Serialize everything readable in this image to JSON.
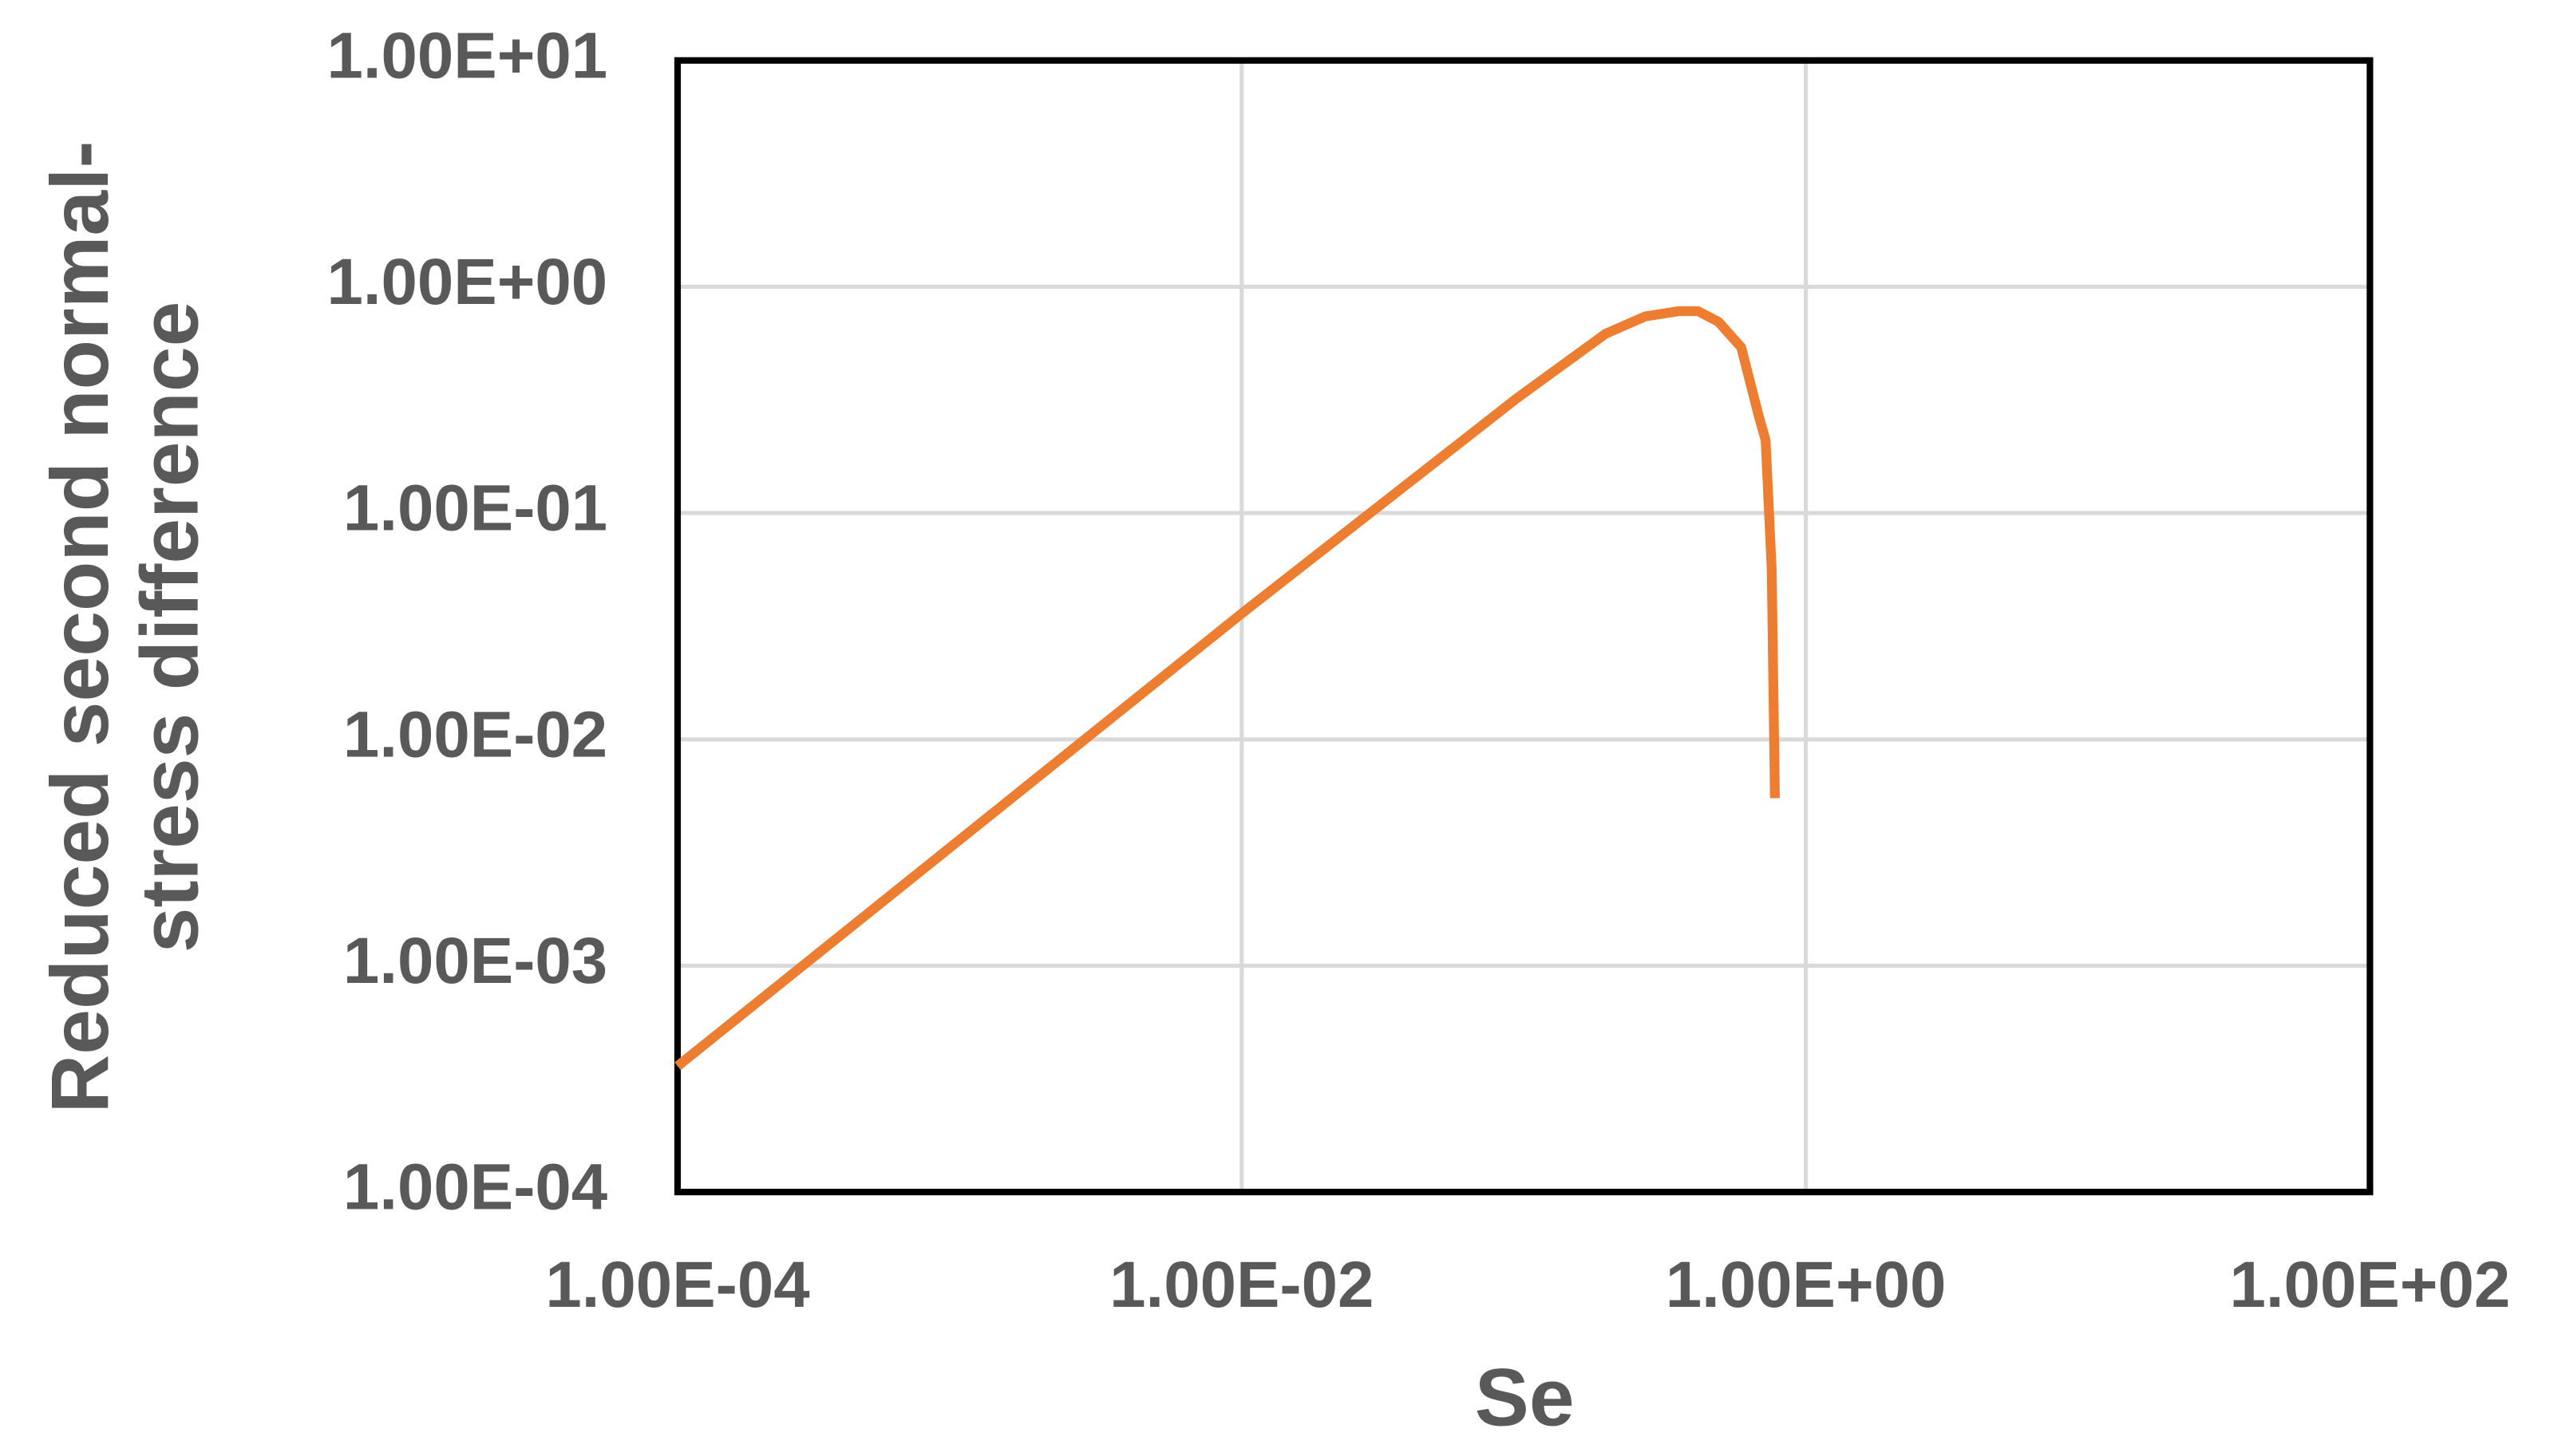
{
  "chart_data": {
    "type": "line",
    "xlabel": "Se",
    "ylabel": [
      "Reduced second normal-",
      "stress difference"
    ],
    "x": [
      0.0001,
      0.001,
      0.01,
      0.094,
      0.195,
      0.27,
      0.354,
      0.415,
      0.49,
      0.59,
      0.68,
      0.72,
      0.757,
      0.777
    ],
    "values": [
      0.00036,
      0.0036,
      0.036,
      0.32,
      0.62,
      0.74,
      0.78,
      0.78,
      0.7,
      0.54,
      0.27,
      0.21,
      0.056,
      0.0055
    ],
    "color": "#ed7d31",
    "xscale": "log",
    "yscale": "log",
    "xlim": [
      0.0001,
      100
    ],
    "ylim": [
      0.0001,
      10
    ],
    "xticks": [
      {
        "value": 0.0001,
        "label": "1.00E-04"
      },
      {
        "value": 0.01,
        "label": "1.00E-02"
      },
      {
        "value": 1,
        "label": "1.00E+00"
      },
      {
        "value": 100,
        "label": "1.00E+02"
      }
    ],
    "yticks": [
      {
        "value": 0.0001,
        "label": "1.00E-04"
      },
      {
        "value": 0.001,
        "label": "1.00E-03"
      },
      {
        "value": 0.01,
        "label": "1.00E-02"
      },
      {
        "value": 0.1,
        "label": "1.00E-01"
      },
      {
        "value": 1,
        "label": "1.00E+00"
      },
      {
        "value": 10,
        "label": "1.00E+01"
      }
    ],
    "grid": true
  }
}
